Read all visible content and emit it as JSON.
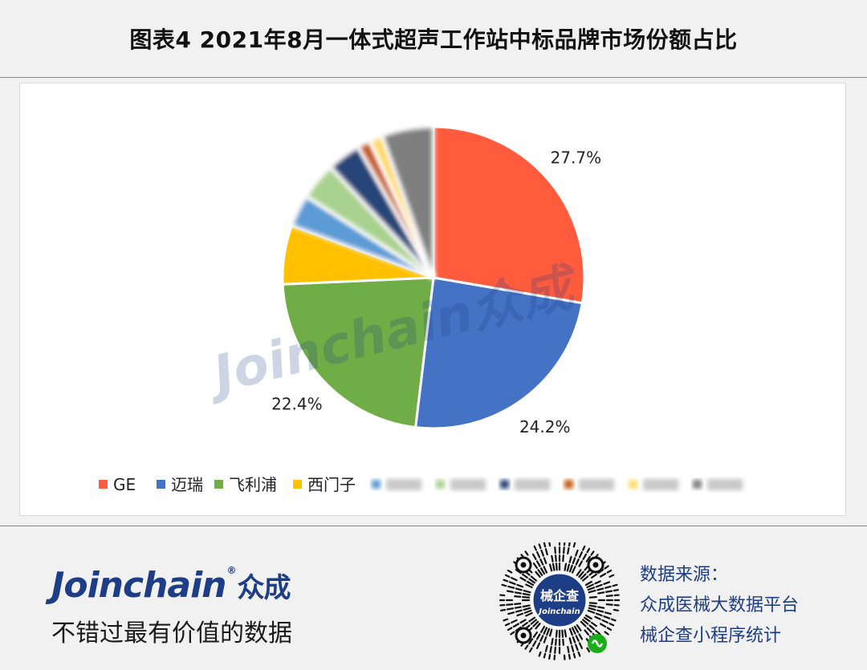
{
  "header": {
    "title": "图表4  2021年8月一体式超声工作站中标品牌市场份额占比"
  },
  "chart_data": {
    "type": "pie",
    "title": "图表4  2021年8月一体式超声工作站中标品牌市场份额占比",
    "slices": [
      {
        "label": "GE",
        "value": 27.7,
        "value_label": "27.7%",
        "color": "#FF5B3D"
      },
      {
        "label": "迈瑞",
        "value": 24.2,
        "value_label": "24.2%",
        "color": "#4472C4"
      },
      {
        "label": "飞利浦",
        "value": 22.4,
        "value_label": "22.4%",
        "color": "#70AD47"
      },
      {
        "label": "西门子",
        "value": 6.3,
        "value_label": "",
        "color": "#FFC000"
      },
      {
        "label": "",
        "value": 3.5,
        "value_label": "",
        "color": "#5B9BD5"
      },
      {
        "label": "",
        "value": 4.0,
        "value_label": "",
        "color": "#A9D18E"
      },
      {
        "label": "",
        "value": 3.6,
        "value_label": "",
        "color": "#264478"
      },
      {
        "label": "",
        "value": 1.4,
        "value_label": "",
        "color": "#C55A11"
      },
      {
        "label": "",
        "value": 1.4,
        "value_label": "",
        "color": "#FFD966"
      },
      {
        "label": "",
        "value": 5.5,
        "value_label": "",
        "color": "#7F7F7F"
      }
    ],
    "legend_position": "bottom",
    "watermark": "Joinchain众成"
  },
  "footer": {
    "brand": "Joinchain",
    "brand_reg": "®",
    "brand_cn": "众成",
    "slogan": "不错过最有价值的数据",
    "qr_center_text": "械企查",
    "qr_center_sub": "Joinchain",
    "source_lines": [
      "数据来源：",
      "众成医械大数据平台",
      "械企查小程序统计"
    ]
  }
}
